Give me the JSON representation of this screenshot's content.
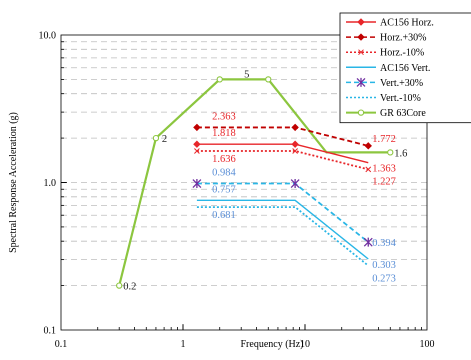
{
  "chart_data": {
    "type": "line",
    "title": "",
    "xlabel": "Frequency (Hz)",
    "ylabel": "Spectral Response Acceleration (g)",
    "xscale": "log",
    "yscale": "log",
    "xlim": [
      0.1,
      100
    ],
    "ylim": [
      0.1,
      10
    ],
    "x_ticks": [
      {
        "value": 0.1,
        "label": "0.1"
      },
      {
        "value": 1,
        "label": "1"
      },
      {
        "value": 10,
        "label": "10"
      },
      {
        "value": 100,
        "label": "100"
      }
    ],
    "y_ticks": [
      {
        "value": 0.1,
        "label": "0.1"
      },
      {
        "value": 1,
        "label": "1.0"
      },
      {
        "value": 10,
        "label": "10.0"
      }
    ],
    "grid": "dashed horizontal",
    "legend": "top-right",
    "series": [
      {
        "key": "ac156_horz",
        "name": "AC156 Horz.",
        "color": "#e8262a",
        "dash": "solid",
        "marker": "diamond",
        "x": [
          1.3,
          8.3,
          33
        ],
        "y": [
          1.818,
          1.818,
          1.363
        ],
        "labels": [
          "1.818",
          "",
          "1.363"
        ],
        "marked": [
          true,
          true,
          false
        ]
      },
      {
        "key": "horz_plus30",
        "name": "Horz.+30%",
        "color": "#c00000",
        "dash": "dash",
        "marker": "diamond",
        "x": [
          1.3,
          8.3,
          33
        ],
        "y": [
          2.363,
          2.363,
          1.772
        ],
        "labels": [
          "2.363",
          "",
          "1.772"
        ],
        "marked": [
          true,
          true,
          true
        ]
      },
      {
        "key": "horz_minus10",
        "name": "Horz.-10%",
        "color": "#e8262a",
        "dash": "dot",
        "marker": "x",
        "x": [
          1.3,
          8.3,
          33
        ],
        "y": [
          1.636,
          1.636,
          1.227
        ],
        "labels": [
          "1.636",
          "",
          "1.227"
        ],
        "marked": [
          true,
          true,
          true
        ]
      },
      {
        "key": "ac156_vert",
        "name": "AC156 Vert.",
        "color": "#29b6e6",
        "dash": "solid",
        "marker": "none",
        "x": [
          1.3,
          8.3,
          33
        ],
        "y": [
          0.757,
          0.757,
          0.303
        ],
        "labels": [
          "0.757",
          "",
          "0.303"
        ],
        "marked": [
          false,
          false,
          false
        ]
      },
      {
        "key": "vert_plus30",
        "name": "Vert.+30%",
        "color": "#29b6e6",
        "dash": "dash",
        "marker": "asterisk",
        "marker_color": "#7030a0",
        "x": [
          1.3,
          8.3,
          33
        ],
        "y": [
          0.984,
          0.984,
          0.394
        ],
        "labels": [
          "0.984",
          "",
          "0.394"
        ],
        "marked": [
          true,
          true,
          true
        ]
      },
      {
        "key": "vert_minus10",
        "name": "Vert.-10%",
        "color": "#29b6e6",
        "dash": "dot",
        "marker": "none",
        "x": [
          1.3,
          8.3,
          33
        ],
        "y": [
          0.681,
          0.681,
          0.273
        ],
        "labels": [
          "0.681",
          "",
          "0.273"
        ],
        "marked": [
          false,
          false,
          false
        ]
      },
      {
        "key": "gr63core",
        "name": "GR 63Core",
        "color": "#8cc63f",
        "dash": "solid",
        "marker": "circle",
        "x": [
          0.3,
          0.6,
          2,
          5,
          15,
          50
        ],
        "y": [
          0.2,
          2,
          5,
          5,
          1.6,
          1.6
        ],
        "labels": [
          "0.2",
          "2",
          "5",
          "",
          "",
          "1.6"
        ],
        "marked": [
          true,
          true,
          true,
          true,
          false,
          true
        ]
      }
    ]
  }
}
